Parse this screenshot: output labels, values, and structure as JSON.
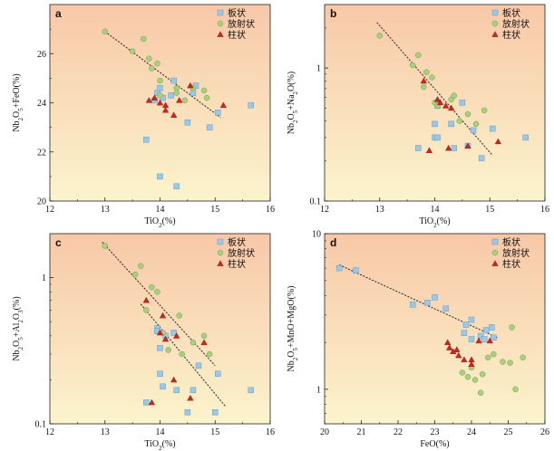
{
  "colors": {
    "bg_top": "#f8c8a8",
    "bg_bottom": "#fbf4cc",
    "square": "#9cc8e8",
    "square_stroke": "#5f9dc6",
    "circle": "#a8d080",
    "circle_stroke": "#6f9d4c",
    "triangle": "#c82820",
    "trend": "#222222"
  },
  "legend_labels": [
    "板状",
    "放射状",
    "柱状"
  ],
  "chart_data": [
    {
      "type": "scatter",
      "panel": "a",
      "xlabel": "TiO2(%)",
      "ylabel": "Nb2O5+FeO(%)",
      "xlim": [
        12,
        16
      ],
      "ylim": [
        20,
        28
      ],
      "log_y": false,
      "xticks": [
        "12",
        "13",
        "14",
        "15",
        "16"
      ],
      "yticks": [
        "20",
        "22",
        "24",
        "26"
      ],
      "legend_position": "top-right",
      "trend": [
        [
          13.0,
          26.9
        ],
        [
          15.1,
          23.4
        ]
      ],
      "series": [
        {
          "name": "板状",
          "marker": "square",
          "points": [
            [
              13.75,
              22.5
            ],
            [
              13.9,
              24.1
            ],
            [
              13.95,
              24.4
            ],
            [
              14.0,
              24.6
            ],
            [
              14.0,
              21.0
            ],
            [
              14.05,
              24.2
            ],
            [
              14.2,
              24.3
            ],
            [
              14.25,
              24.9
            ],
            [
              14.3,
              20.6
            ],
            [
              14.5,
              23.2
            ],
            [
              14.6,
              24.4
            ],
            [
              14.65,
              24.7
            ],
            [
              14.9,
              23.0
            ],
            [
              15.05,
              23.6
            ],
            [
              15.65,
              23.9
            ]
          ]
        },
        {
          "name": "放射状",
          "marker": "circle",
          "points": [
            [
              13.0,
              26.9
            ],
            [
              13.5,
              26.1
            ],
            [
              13.7,
              26.6
            ],
            [
              13.8,
              25.8
            ],
            [
              13.85,
              25.4
            ],
            [
              13.95,
              25.6
            ],
            [
              14.0,
              24.9
            ],
            [
              14.0,
              24.3
            ],
            [
              14.3,
              24.6
            ],
            [
              14.3,
              24.4
            ],
            [
              14.45,
              24.1
            ],
            [
              14.6,
              24.6
            ],
            [
              14.8,
              24.5
            ],
            [
              14.85,
              24.2
            ]
          ]
        },
        {
          "name": "柱状",
          "marker": "triangle",
          "points": [
            [
              13.8,
              24.1
            ],
            [
              13.9,
              24.2
            ],
            [
              14.0,
              24.0
            ],
            [
              14.1,
              23.9
            ],
            [
              14.1,
              23.7
            ],
            [
              14.25,
              23.5
            ],
            [
              14.35,
              24.1
            ],
            [
              14.55,
              24.7
            ],
            [
              15.15,
              23.9
            ]
          ]
        }
      ]
    },
    {
      "type": "scatter",
      "panel": "b",
      "xlabel": "TiO2(%)",
      "ylabel": "Nb2O5+Na2O(%)",
      "xlim": [
        12,
        16
      ],
      "ylim": [
        0.1,
        3
      ],
      "log_y": true,
      "xticks": [
        "12",
        "13",
        "14",
        "15",
        "16"
      ],
      "yticks": [
        "0.1",
        "1"
      ],
      "legend_position": "top-right",
      "trend": [
        [
          12.95,
          2.2
        ],
        [
          15.05,
          0.22
        ]
      ],
      "series": [
        {
          "name": "板状",
          "marker": "square",
          "points": [
            [
              13.7,
              0.25
            ],
            [
              14.0,
              0.38
            ],
            [
              14.0,
              0.3
            ],
            [
              14.05,
              0.3
            ],
            [
              14.05,
              0.52
            ],
            [
              14.3,
              0.38
            ],
            [
              14.35,
              0.25
            ],
            [
              14.5,
              0.55
            ],
            [
              14.6,
              0.26
            ],
            [
              14.7,
              0.34
            ],
            [
              14.85,
              0.21
            ],
            [
              15.05,
              0.35
            ],
            [
              15.65,
              0.3
            ]
          ]
        },
        {
          "name": "放射状",
          "marker": "circle",
          "points": [
            [
              13.0,
              1.75
            ],
            [
              13.6,
              1.05
            ],
            [
              13.7,
              1.25
            ],
            [
              13.8,
              0.72
            ],
            [
              13.85,
              0.93
            ],
            [
              13.95,
              0.85
            ],
            [
              14.0,
              0.55
            ],
            [
              14.05,
              0.52
            ],
            [
              14.3,
              0.58
            ],
            [
              14.35,
              0.62
            ],
            [
              14.45,
              0.4
            ],
            [
              14.6,
              0.45
            ],
            [
              14.75,
              0.38
            ],
            [
              14.9,
              0.48
            ]
          ]
        },
        {
          "name": "柱状",
          "marker": "triangle",
          "points": [
            [
              13.8,
              0.8
            ],
            [
              13.9,
              0.24
            ],
            [
              14.05,
              0.58
            ],
            [
              14.1,
              0.55
            ],
            [
              14.2,
              0.52
            ],
            [
              14.25,
              0.25
            ],
            [
              14.3,
              0.5
            ],
            [
              14.6,
              0.26
            ],
            [
              15.15,
              0.28
            ]
          ]
        }
      ]
    },
    {
      "type": "scatter",
      "panel": "c",
      "xlabel": "TiO2(%)",
      "ylabel": "Nb2O5+Al2O3(%)",
      "xlim": [
        12,
        16
      ],
      "ylim": [
        0.1,
        2
      ],
      "log_y": true,
      "xticks": [
        "12",
        "13",
        "14",
        "15",
        "16"
      ],
      "yticks": [
        "0.1",
        "1"
      ],
      "legend_position": "top-right",
      "trends": [
        [
          [
            12.95,
            1.75
          ],
          [
            15.0,
            0.25
          ]
        ],
        [
          [
            13.65,
            0.66
          ],
          [
            15.2,
            0.13
          ]
        ]
      ],
      "series": [
        {
          "name": "板状",
          "marker": "square",
          "points": [
            [
              13.75,
              0.14
            ],
            [
              13.95,
              0.45
            ],
            [
              13.95,
              0.43
            ],
            [
              14.0,
              0.33
            ],
            [
              14.0,
              0.22
            ],
            [
              14.05,
              0.18
            ],
            [
              14.1,
              0.4
            ],
            [
              14.3,
              0.17
            ],
            [
              14.25,
              0.42
            ],
            [
              14.5,
              0.12
            ],
            [
              14.6,
              0.17
            ],
            [
              14.7,
              0.25
            ],
            [
              15.0,
              0.12
            ],
            [
              15.05,
              0.22
            ],
            [
              15.65,
              0.17
            ]
          ]
        },
        {
          "name": "放射状",
          "marker": "circle",
          "points": [
            [
              13.0,
              1.65
            ],
            [
              13.55,
              1.05
            ],
            [
              13.65,
              1.2
            ],
            [
              13.75,
              0.6
            ],
            [
              13.85,
              0.86
            ],
            [
              13.95,
              0.8
            ],
            [
              14.05,
              0.42
            ],
            [
              14.15,
              0.32
            ],
            [
              14.35,
              0.55
            ],
            [
              14.4,
              0.3
            ],
            [
              14.6,
              0.36
            ],
            [
              14.8,
              0.4
            ],
            [
              14.9,
              0.3
            ]
          ]
        },
        {
          "name": "柱状",
          "marker": "triangle",
          "points": [
            [
              13.75,
              0.7
            ],
            [
              13.85,
              0.14
            ],
            [
              14.0,
              0.42
            ],
            [
              14.05,
              0.55
            ],
            [
              14.1,
              0.38
            ],
            [
              14.25,
              0.2
            ],
            [
              14.3,
              0.4
            ],
            [
              14.55,
              0.15
            ],
            [
              14.8,
              0.36
            ]
          ]
        }
      ]
    },
    {
      "type": "scatter",
      "panel": "d",
      "xlabel": "FeO(%)",
      "ylabel": "Nb2O5+MnO+MgO(%)",
      "xlim": [
        20,
        26
      ],
      "ylim": [
        0.6,
        10
      ],
      "log_y": true,
      "xticks": [
        "20",
        "21",
        "22",
        "23",
        "24",
        "25",
        "26"
      ],
      "yticks": [
        "1",
        "10"
      ],
      "legend_position": "top-right",
      "trend": [
        [
          20.4,
          6.3
        ],
        [
          24.7,
          2.15
        ]
      ],
      "series": [
        {
          "name": "板状",
          "marker": "square",
          "points": [
            [
              20.4,
              6.0
            ],
            [
              20.85,
              5.8
            ],
            [
              22.4,
              3.5
            ],
            [
              22.8,
              3.6
            ],
            [
              23.0,
              3.9
            ],
            [
              23.3,
              3.3
            ],
            [
              23.8,
              2.3
            ],
            [
              23.85,
              2.6
            ],
            [
              24.0,
              2.8
            ],
            [
              24.0,
              2.1
            ],
            [
              24.25,
              2.2
            ],
            [
              24.35,
              2.1
            ],
            [
              24.4,
              2.4
            ],
            [
              24.55,
              2.5
            ],
            [
              24.6,
              2.15
            ]
          ]
        },
        {
          "name": "放射状",
          "marker": "circle",
          "points": [
            [
              23.75,
              1.28
            ],
            [
              23.9,
              1.2
            ],
            [
              24.0,
              1.38
            ],
            [
              24.1,
              1.15
            ],
            [
              24.25,
              0.95
            ],
            [
              24.3,
              1.25
            ],
            [
              24.45,
              1.6
            ],
            [
              24.6,
              1.68
            ],
            [
              24.85,
              1.5
            ],
            [
              25.05,
              1.48
            ],
            [
              25.1,
              2.5
            ],
            [
              25.2,
              1.0
            ],
            [
              25.4,
              1.6
            ]
          ]
        },
        {
          "name": "柱状",
          "marker": "triangle",
          "points": [
            [
              23.35,
              2.0
            ],
            [
              23.4,
              1.85
            ],
            [
              23.5,
              1.75
            ],
            [
              23.6,
              1.8
            ],
            [
              23.65,
              1.65
            ],
            [
              23.8,
              1.55
            ],
            [
              24.0,
              1.55
            ],
            [
              24.0,
              1.45
            ],
            [
              24.2,
              2.05
            ],
            [
              24.5,
              2.05
            ]
          ]
        }
      ]
    }
  ]
}
